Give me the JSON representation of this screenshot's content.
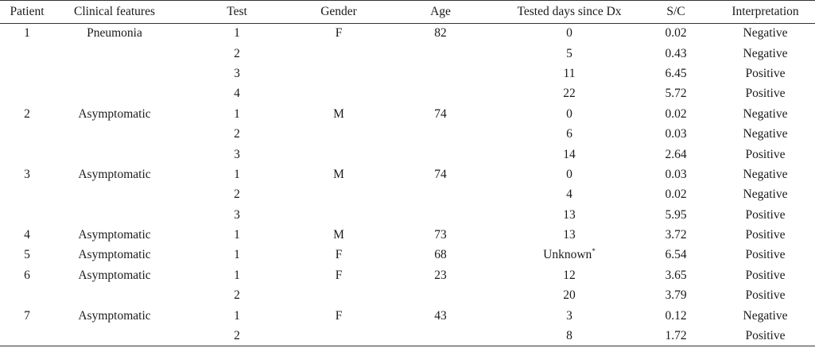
{
  "table": {
    "headers": [
      "Patient",
      "Clinical features",
      "Test",
      "Gender",
      "Age",
      "Tested days since Dx",
      "S/C",
      "Interpretation"
    ],
    "rows": [
      {
        "patient": "1",
        "clinical": "Pneumonia",
        "test": "1",
        "gender": "F",
        "age": "82",
        "days": "0",
        "days_mark": "",
        "sc": "0.02",
        "interp": "Negative"
      },
      {
        "patient": "",
        "clinical": "",
        "test": "2",
        "gender": "",
        "age": "",
        "days": "5",
        "days_mark": "",
        "sc": "0.43",
        "interp": "Negative"
      },
      {
        "patient": "",
        "clinical": "",
        "test": "3",
        "gender": "",
        "age": "",
        "days": "11",
        "days_mark": "",
        "sc": "6.45",
        "interp": "Positive"
      },
      {
        "patient": "",
        "clinical": "",
        "test": "4",
        "gender": "",
        "age": "",
        "days": "22",
        "days_mark": "",
        "sc": "5.72",
        "interp": "Positive"
      },
      {
        "patient": "2",
        "clinical": "Asymptomatic",
        "test": "1",
        "gender": "M",
        "age": "74",
        "days": "0",
        "days_mark": "",
        "sc": "0.02",
        "interp": "Negative"
      },
      {
        "patient": "",
        "clinical": "",
        "test": "2",
        "gender": "",
        "age": "",
        "days": "6",
        "days_mark": "",
        "sc": "0.03",
        "interp": "Negative"
      },
      {
        "patient": "",
        "clinical": "",
        "test": "3",
        "gender": "",
        "age": "",
        "days": "14",
        "days_mark": "",
        "sc": "2.64",
        "interp": "Positive"
      },
      {
        "patient": "3",
        "clinical": "Asymptomatic",
        "test": "1",
        "gender": "M",
        "age": "74",
        "days": "0",
        "days_mark": "",
        "sc": "0.03",
        "interp": "Negative"
      },
      {
        "patient": "",
        "clinical": "",
        "test": "2",
        "gender": "",
        "age": "",
        "days": "4",
        "days_mark": "",
        "sc": "0.02",
        "interp": "Negative"
      },
      {
        "patient": "",
        "clinical": "",
        "test": "3",
        "gender": "",
        "age": "",
        "days": "13",
        "days_mark": "",
        "sc": "5.95",
        "interp": "Positive"
      },
      {
        "patient": "4",
        "clinical": "Asymptomatic",
        "test": "1",
        "gender": "M",
        "age": "73",
        "days": "13",
        "days_mark": "",
        "sc": "3.72",
        "interp": "Positive"
      },
      {
        "patient": "5",
        "clinical": "Asymptomatic",
        "test": "1",
        "gender": "F",
        "age": "68",
        "days": "Unknown",
        "days_mark": "*",
        "sc": "6.54",
        "interp": "Positive"
      },
      {
        "patient": "6",
        "clinical": "Asymptomatic",
        "test": "1",
        "gender": "F",
        "age": "23",
        "days": "12",
        "days_mark": "",
        "sc": "3.65",
        "interp": "Positive"
      },
      {
        "patient": "",
        "clinical": "",
        "test": "2",
        "gender": "",
        "age": "",
        "days": "20",
        "days_mark": "",
        "sc": "3.79",
        "interp": "Positive"
      },
      {
        "patient": "7",
        "clinical": "Asymptomatic",
        "test": "1",
        "gender": "F",
        "age": "43",
        "days": "3",
        "days_mark": "",
        "sc": "0.12",
        "interp": "Negative"
      },
      {
        "patient": "",
        "clinical": "",
        "test": "2",
        "gender": "",
        "age": "",
        "days": "8",
        "days_mark": "",
        "sc": "1.72",
        "interp": "Positive"
      }
    ]
  }
}
